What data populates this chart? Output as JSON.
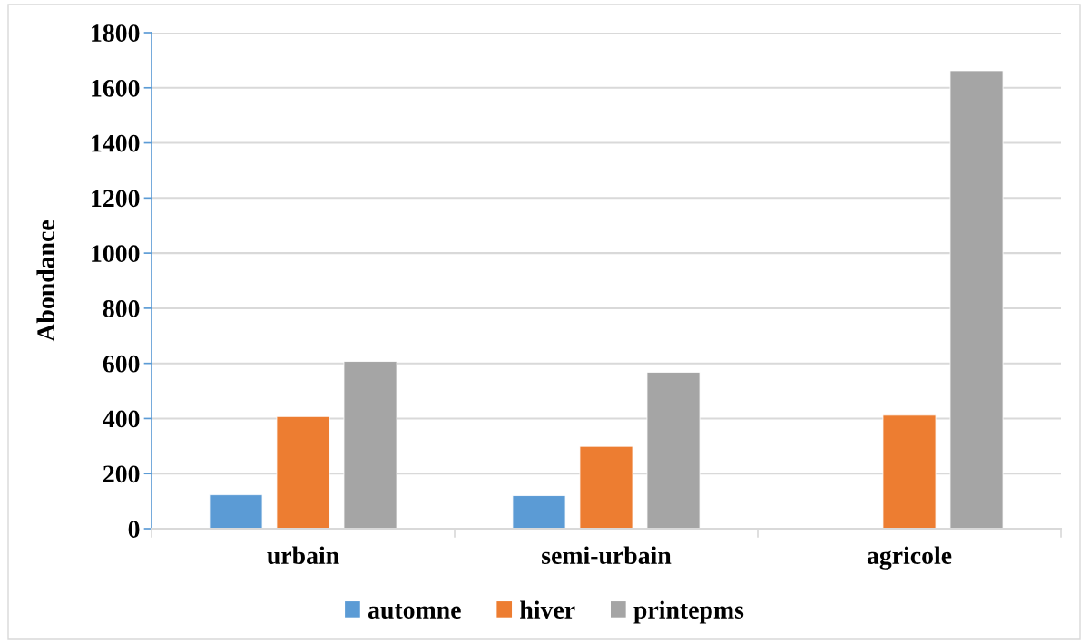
{
  "chart_data": {
    "type": "bar",
    "ylabel": "Abondance",
    "categories": [
      "urbain",
      "semi-urbain",
      "agricole"
    ],
    "series": [
      {
        "name": "automne",
        "color": "#5b9bd5",
        "values": [
          123,
          120,
          null
        ]
      },
      {
        "name": "hiver",
        "color": "#ed7d31",
        "values": [
          407,
          299,
          412
        ]
      },
      {
        "name": "printepms",
        "color": "#a5a5a5",
        "values": [
          607,
          568,
          1662
        ]
      }
    ],
    "ylim": [
      0,
      1800
    ],
    "yticks": [
      0,
      200,
      400,
      600,
      800,
      1000,
      1200,
      1400,
      1600,
      1800
    ],
    "grid": "y",
    "legend": "bottom"
  }
}
